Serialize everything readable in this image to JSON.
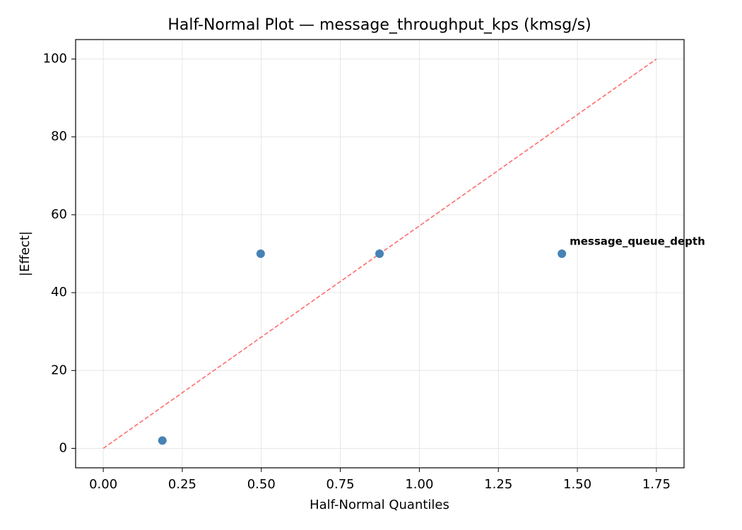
{
  "chart_data": {
    "type": "scatter",
    "title": "Half-Normal Plot — message_throughput_kps (kmsg/s)",
    "x_label": "Half-Normal Quantiles",
    "y_label": "|Effect|",
    "x": [
      0.187,
      0.498,
      0.874,
      1.451
    ],
    "values": [
      2,
      50,
      50,
      50
    ],
    "color": "#4682b4",
    "reference_line": {
      "x": [
        0,
        1.75
      ],
      "y": [
        0,
        100
      ],
      "color": "#ff6b6b"
    },
    "annotations": [
      {
        "text": "message_queue_depth",
        "x": 1.451,
        "y": 50,
        "color": "#ff0000"
      }
    ],
    "xlim": [
      -0.0875,
      1.8375
    ],
    "ylim": [
      -5,
      105
    ],
    "xticks": [
      {
        "value": 0,
        "label": "0.00"
      },
      {
        "value": 0.25,
        "label": "0.25"
      },
      {
        "value": 0.5,
        "label": "0.50"
      },
      {
        "value": 0.75,
        "label": "0.75"
      },
      {
        "value": 1,
        "label": "1.00"
      },
      {
        "value": 1.25,
        "label": "1.25"
      },
      {
        "value": 1.5,
        "label": "1.50"
      },
      {
        "value": 1.75,
        "label": "1.75"
      }
    ],
    "yticks": [
      0,
      20,
      40,
      60,
      80,
      100
    ],
    "grid": true
  }
}
